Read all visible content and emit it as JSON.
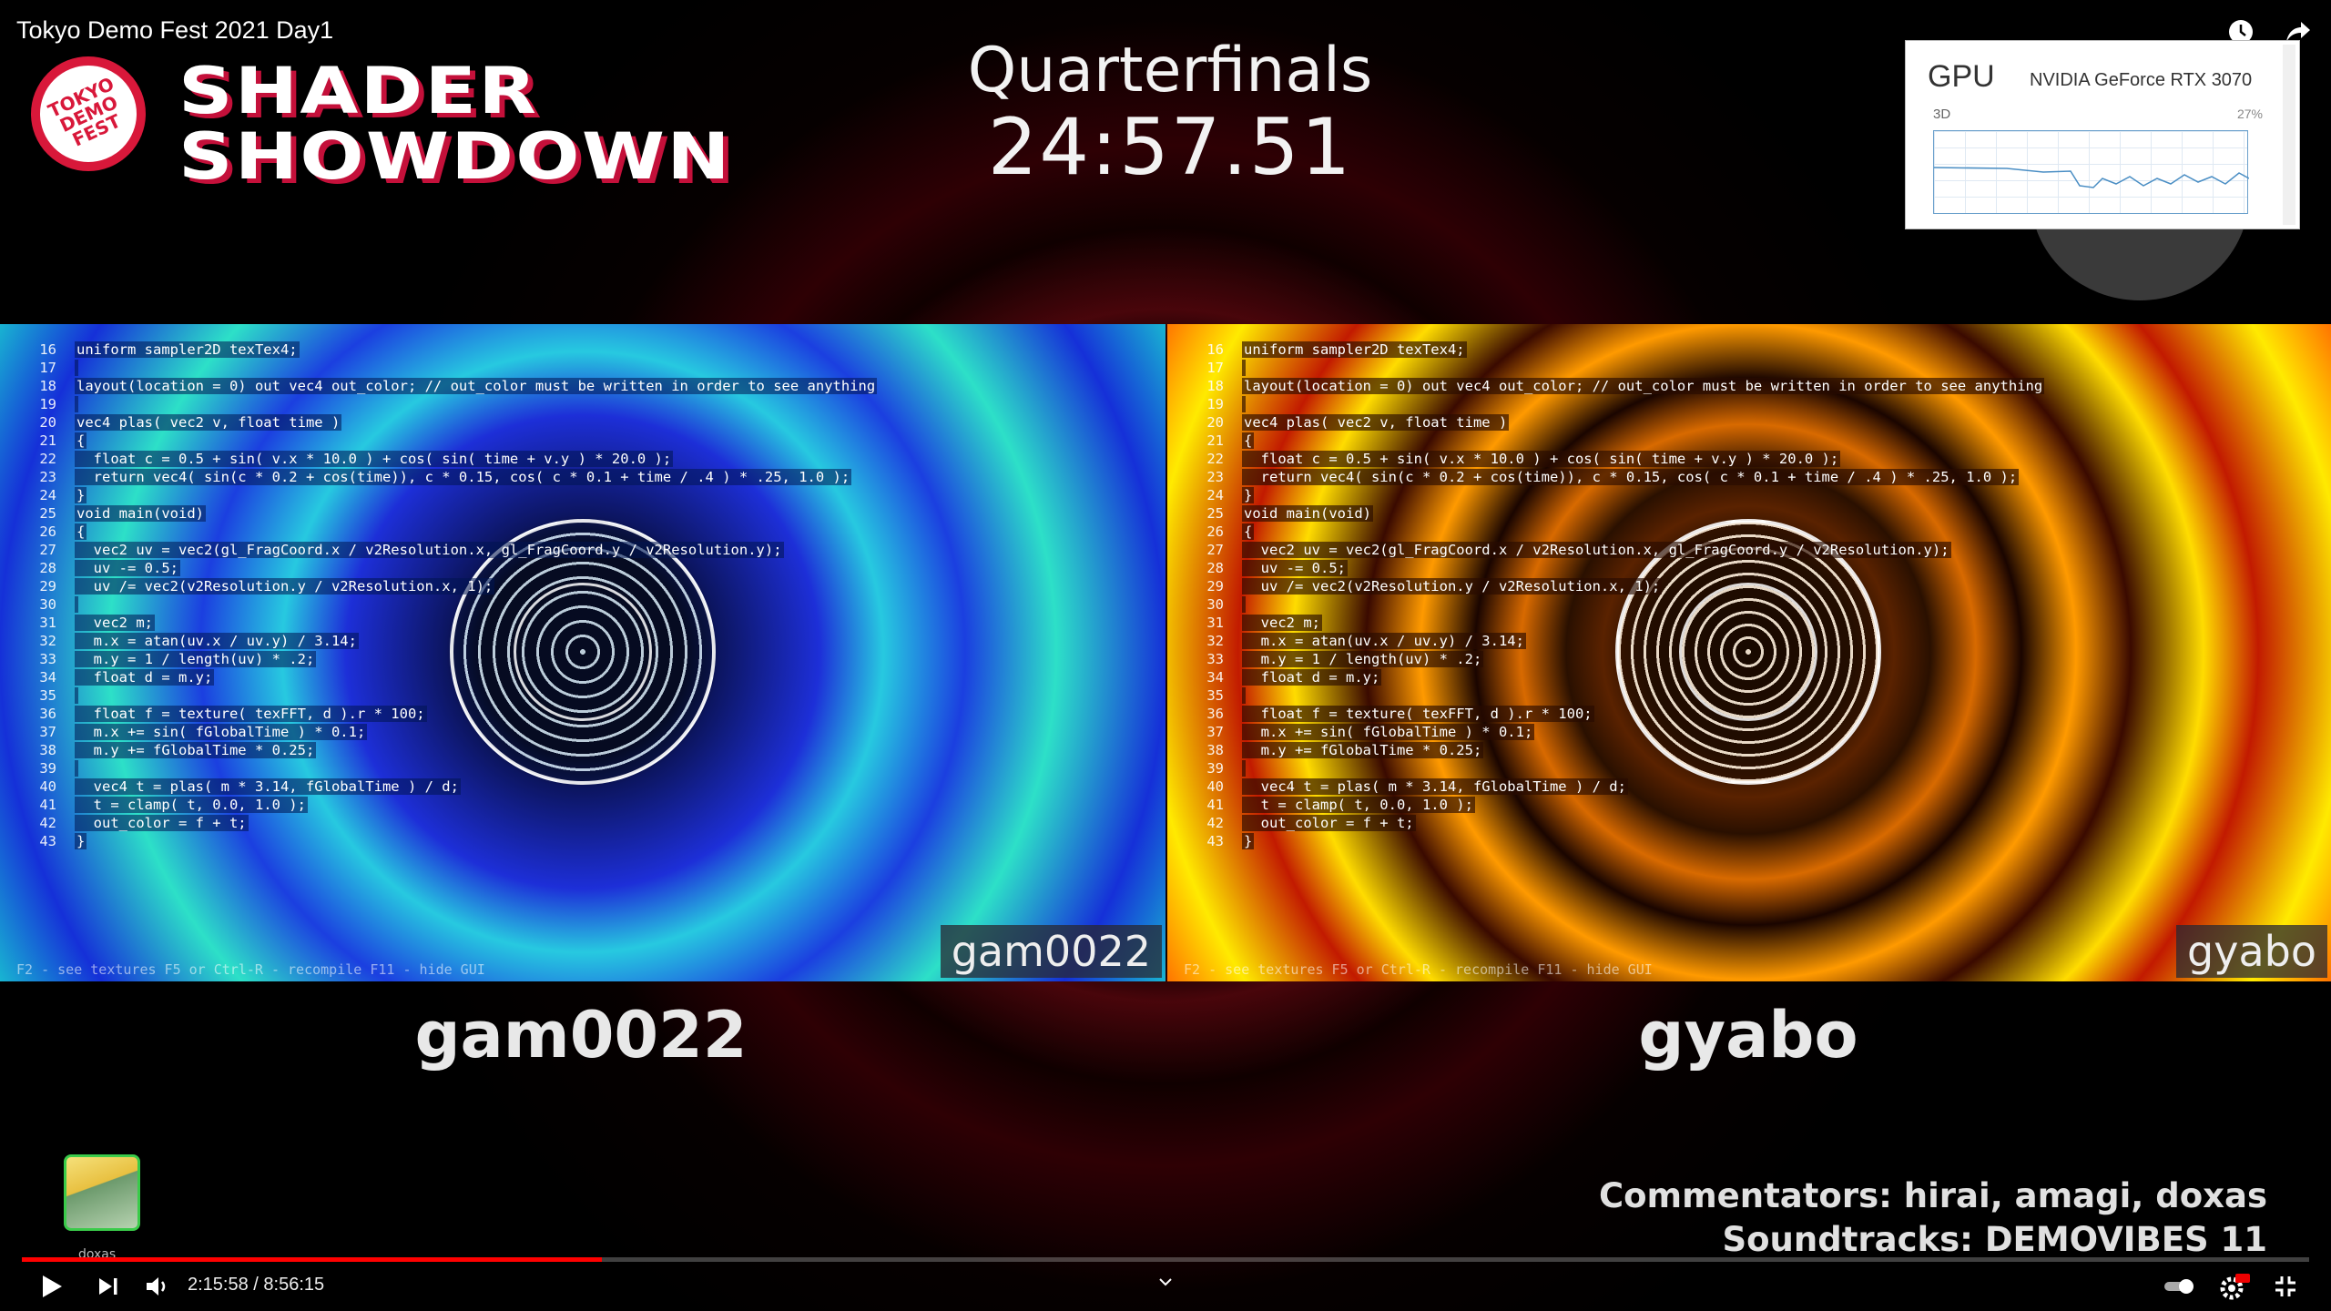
{
  "video": {
    "title": "Tokyo Demo Fest 2021 Day1"
  },
  "logo": {
    "circle_text": "TOKYO\nDEMO\nFEST",
    "line1": "SHADER",
    "line2": "SHOWDOWN"
  },
  "header": {
    "round": "Quarterfinals",
    "timer": "24:57.51"
  },
  "gpu": {
    "label": "GPU",
    "name": "NVIDIA GeForce RTX 3070",
    "engine": "3D",
    "percent": "27%"
  },
  "code_lines": [
    {
      "n": "16",
      "t": "uniform sampler2D texTex4;"
    },
    {
      "n": "17",
      "t": ""
    },
    {
      "n": "18",
      "t": "layout(location = 0) out vec4 out_color; // out_color must be written in order to see anything"
    },
    {
      "n": "19",
      "t": ""
    },
    {
      "n": "20",
      "t": "vec4 plas( vec2 v, float time )"
    },
    {
      "n": "21",
      "t": "{"
    },
    {
      "n": "22",
      "t": "  float c = 0.5 + sin( v.x * 10.0 ) + cos( sin( time + v.y ) * 20.0 );"
    },
    {
      "n": "23",
      "t": "  return vec4( sin(c * 0.2 + cos(time)), c * 0.15, cos( c * 0.1 + time / .4 ) * .25, 1.0 );"
    },
    {
      "n": "24",
      "t": "}"
    },
    {
      "n": "25",
      "t": "void main(void)"
    },
    {
      "n": "26",
      "t": "{"
    },
    {
      "n": "27",
      "t": "  vec2 uv = vec2(gl_FragCoord.x / v2Resolution.x, gl_FragCoord.y / v2Resolution.y);"
    },
    {
      "n": "28",
      "t": "  uv -= 0.5;"
    },
    {
      "n": "29",
      "t": "  uv /= vec2(v2Resolution.y / v2Resolution.x, 1);"
    },
    {
      "n": "30",
      "t": ""
    },
    {
      "n": "31",
      "t": "  vec2 m;"
    },
    {
      "n": "32",
      "t": "  m.x = atan(uv.x / uv.y) / 3.14;"
    },
    {
      "n": "33",
      "t": "  m.y = 1 / length(uv) * .2;"
    },
    {
      "n": "34",
      "t": "  float d = m.y;"
    },
    {
      "n": "35",
      "t": ""
    },
    {
      "n": "36",
      "t": "  float f = texture( texFFT, d ).r * 100;"
    },
    {
      "n": "37",
      "t": "  m.x += sin( fGlobalTime ) * 0.1;"
    },
    {
      "n": "38",
      "t": "  m.y += fGlobalTime * 0.25;"
    },
    {
      "n": "39",
      "t": ""
    },
    {
      "n": "40",
      "t": "  vec4 t = plas( m * 3.14, fGlobalTime ) / d;"
    },
    {
      "n": "41",
      "t": "  t = clamp( t, 0.0, 1.0 );"
    },
    {
      "n": "42",
      "t": "  out_color = f + t;"
    },
    {
      "n": "43",
      "t": "}"
    }
  ],
  "panels": {
    "left": {
      "tag": "gam0022",
      "hints": "F2 - see textures   F5 or Ctrl-R - recompile   F11 - hide GUI"
    },
    "right": {
      "tag": "gyabo",
      "hints": "F2 - see textures   F5 or Ctrl-R - recompile   F11 - hide GUI"
    }
  },
  "players": {
    "left": "gam0022",
    "right": "gyabo"
  },
  "credits": {
    "line1": "Commentators: hirai, amagi, doxas",
    "line2": "Soundtracks: DEMOVIBES 11"
  },
  "avatar": {
    "label": "doxas"
  },
  "player": {
    "current_time": "2:15:58",
    "duration": "8:56:15",
    "time_text": "2:15:58 / 8:56:15",
    "progress_fraction": 0.2536,
    "accent": "#ff0000"
  },
  "icons": [
    "watch-later-icon",
    "share-icon",
    "play-icon",
    "next-icon",
    "volume-icon",
    "chevron-down-icon",
    "autoplay-toggle",
    "settings-icon",
    "exit-fullscreen-icon"
  ]
}
